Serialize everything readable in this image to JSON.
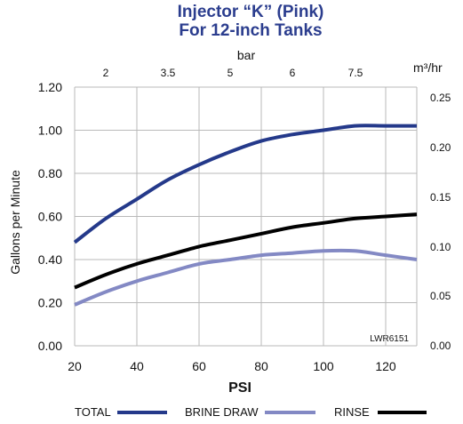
{
  "chart_data": {
    "type": "line",
    "title": "Injector “K” (Pink)",
    "subtitle": "For 12-inch Tanks",
    "title_color": "#2b3d8e",
    "xlabel": "PSI",
    "ylabel": "Gallons per  Minute",
    "top_axis_label": "bar",
    "right_axis_label": "m³/hr",
    "xlim": [
      20,
      130
    ],
    "ylim": [
      0,
      1.2
    ],
    "x_ticks": [
      "20",
      "40",
      "60",
      "80",
      "100",
      "120"
    ],
    "y_ticks": [
      "0.00",
      "0.20",
      "0.40",
      "0.60",
      "0.80",
      "1.00",
      "1.20"
    ],
    "top_ticks": [
      "2",
      "3.5",
      "5",
      "6",
      "7.5"
    ],
    "right_ticks": [
      "0.00",
      "0.05",
      "0.10",
      "0.15",
      "0.20",
      "0.25"
    ],
    "grid": true,
    "legend_position": "bottom",
    "annotation": "LWR6151",
    "x": [
      20,
      30,
      40,
      50,
      60,
      70,
      80,
      90,
      100,
      110,
      120,
      130
    ],
    "series": [
      {
        "name": "TOTAL",
        "color": "#24398a",
        "values": [
          0.48,
          0.59,
          0.68,
          0.77,
          0.84,
          0.9,
          0.95,
          0.98,
          1.0,
          1.02,
          1.02,
          1.02
        ]
      },
      {
        "name": "BRINE DRAW",
        "color": "#8389c4",
        "values": [
          0.19,
          0.25,
          0.3,
          0.34,
          0.38,
          0.4,
          0.42,
          0.43,
          0.44,
          0.44,
          0.42,
          0.4
        ]
      },
      {
        "name": "RINSE",
        "color": "#000000",
        "values": [
          0.27,
          0.33,
          0.38,
          0.42,
          0.46,
          0.49,
          0.52,
          0.55,
          0.57,
          0.59,
          0.6,
          0.61
        ]
      }
    ]
  }
}
